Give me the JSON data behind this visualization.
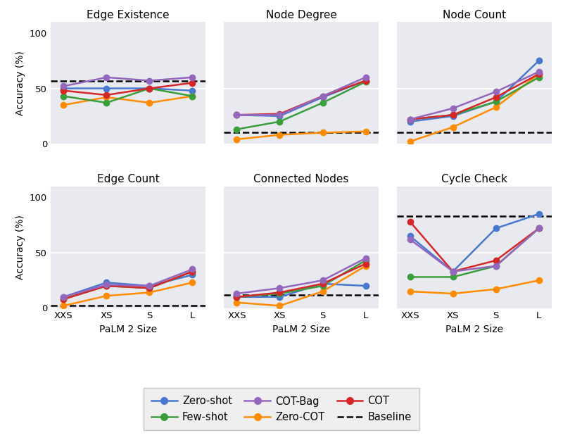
{
  "subplots": [
    {
      "title": "Edge Existence",
      "baseline": 57,
      "series": {
        "Zero-shot": [
          50,
          50,
          50,
          48
        ],
        "Zero-COT": [
          35,
          42,
          37,
          43
        ],
        "Few-shot": [
          43,
          37,
          50,
          43
        ],
        "COT": [
          48,
          44,
          50,
          55
        ],
        "COT-Bag": [
          52,
          60,
          57,
          60
        ]
      }
    },
    {
      "title": "Node Degree",
      "baseline": 10,
      "series": {
        "Zero-shot": [
          26,
          25,
          42,
          57
        ],
        "Zero-COT": [
          4,
          8,
          10,
          11
        ],
        "Few-shot": [
          13,
          20,
          37,
          56
        ],
        "COT": [
          26,
          27,
          43,
          57
        ],
        "COT-Bag": [
          26,
          26,
          43,
          60
        ]
      }
    },
    {
      "title": "Node Count",
      "baseline": 10,
      "series": {
        "Zero-shot": [
          20,
          25,
          38,
          75
        ],
        "Zero-COT": [
          2,
          15,
          33,
          63
        ],
        "Few-shot": [
          22,
          26,
          38,
          60
        ],
        "COT": [
          22,
          26,
          42,
          63
        ],
        "COT-Bag": [
          22,
          32,
          47,
          65
        ]
      }
    },
    {
      "title": "Edge Count",
      "baseline": 2,
      "series": {
        "Zero-shot": [
          10,
          23,
          20,
          30
        ],
        "Zero-COT": [
          2,
          11,
          14,
          23
        ],
        "Few-shot": [
          8,
          20,
          18,
          33
        ],
        "COT": [
          8,
          20,
          18,
          33
        ],
        "COT-Bag": [
          10,
          21,
          20,
          35
        ]
      }
    },
    {
      "title": "Connected Nodes",
      "baseline": 12,
      "series": {
        "Zero-shot": [
          10,
          10,
          22,
          20
        ],
        "Zero-COT": [
          5,
          2,
          15,
          38
        ],
        "Few-shot": [
          10,
          13,
          20,
          43
        ],
        "COT": [
          10,
          14,
          22,
          40
        ],
        "COT-Bag": [
          13,
          18,
          25,
          45
        ]
      }
    },
    {
      "title": "Cycle Check",
      "baseline": 83,
      "series": {
        "Zero-shot": [
          65,
          33,
          72,
          85
        ],
        "Zero-COT": [
          15,
          13,
          17,
          25
        ],
        "Few-shot": [
          28,
          28,
          38,
          72
        ],
        "COT": [
          78,
          33,
          43,
          72
        ],
        "COT-Bag": [
          62,
          33,
          38,
          72
        ]
      }
    }
  ],
  "x_ticks": [
    "XXS",
    "XS",
    "S",
    "L"
  ],
  "x_label": "PaLM 2 Size",
  "y_label": "Accuracy (%)",
  "colors": {
    "Zero-shot": "#4878cf",
    "Zero-COT": "#ff8c00",
    "Few-shot": "#3a9e3a",
    "COT": "#d62728",
    "COT-Bag": "#9467bd"
  },
  "bg_color": "#e8eaf0",
  "fig_bg": "#ffffff",
  "hline_50_color": "#ffffff",
  "baseline_color": "black",
  "ylim": [
    0,
    110
  ],
  "yticks": [
    0,
    50,
    100
  ]
}
